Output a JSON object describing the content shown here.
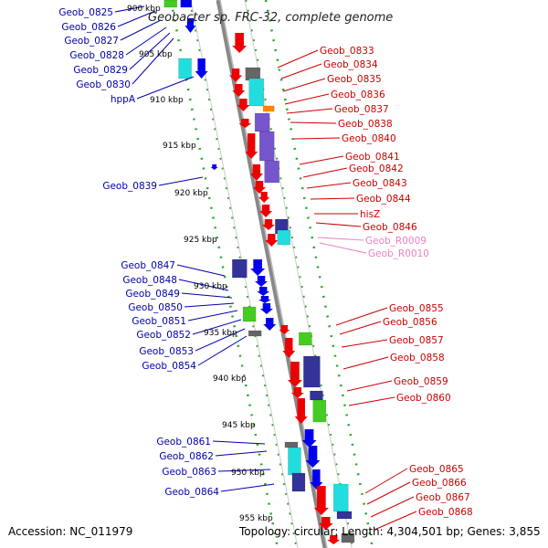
{
  "title": "Geobacter sp. FRC-32, complete genome",
  "footer": {
    "accession": "Accession: NC_011979",
    "summary": "Topology: circular; Length: 4,304,501 bp; Genes: 3,855"
  },
  "colors": {
    "left_label": "#0000aa",
    "right_label": "#cc0000",
    "rna_label": "#f080c0",
    "backbone": "#888888",
    "ruler": "#22aa22",
    "red": "#ee0000",
    "blue": "#0000ee",
    "navy": "#333399",
    "purple": "#7755cc",
    "cyan": "#22dddd",
    "green": "#44cc22",
    "grey": "#666666",
    "orange": "#ff8800"
  },
  "ticks": [
    "900 kbp",
    "905 kbp",
    "910 kbp",
    "915 kbp",
    "920 kbp",
    "925 kbp",
    "930 kbp",
    "935 kbp",
    "940 kbp",
    "945 kbp",
    "950 kbp",
    "955 kbp"
  ],
  "left_labels": [
    "Geob_0825",
    "Geob_0826",
    "Geob_0827",
    "Geob_0828",
    "Geob_0829",
    "Geob_0830",
    "hppA",
    "Geob_0839",
    "Geob_0847",
    "Geob_0848",
    "Geob_0849",
    "Geob_0850",
    "Geob_0851",
    "Geob_0852",
    "Geob_0853",
    "Geob_0854",
    "Geob_0861",
    "Geob_0862",
    "Geob_0863",
    "Geob_0864"
  ],
  "right_labels": [
    "Geob_0833",
    "Geob_0834",
    "Geob_0835",
    "Geob_0836",
    "Geob_0837",
    "Geob_0838",
    "Geob_0840",
    "Geob_0841",
    "Geob_0842",
    "Geob_0843",
    "Geob_0844",
    "hisZ",
    "Geob_0846",
    "Geob_R0009",
    "Geob_R0010",
    "Geob_0855",
    "Geob_0856",
    "Geob_0857",
    "Geob_0858",
    "Geob_0859",
    "Geob_0860",
    "Geob_0865",
    "Geob_0866",
    "Geob_0867",
    "Geob_0868"
  ]
}
